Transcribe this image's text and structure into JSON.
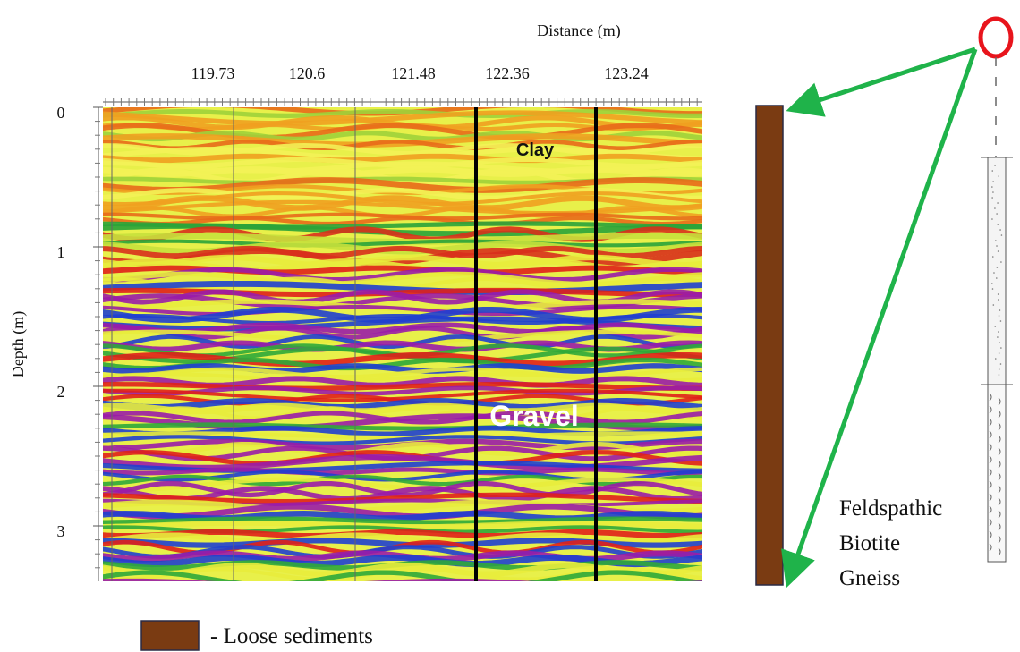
{
  "radargram": {
    "x_label": "Distance (m)",
    "y_label": "Depth (m)",
    "xticks": [
      "119.73",
      "120.6",
      "121.48",
      "122.36",
      "123.24"
    ],
    "yticks": [
      "0",
      "1",
      "2",
      "3"
    ],
    "annotations": [
      "Clay",
      "Gravel"
    ]
  },
  "borehole": {
    "label_lines": [
      "Feldspathic",
      "Biotite",
      "Gneiss"
    ]
  },
  "legend": {
    "label": "- Loose sediments"
  }
}
